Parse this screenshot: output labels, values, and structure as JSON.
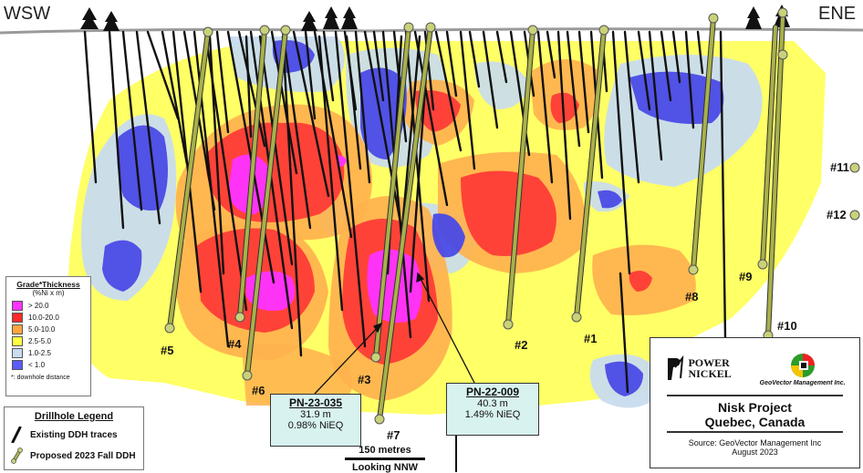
{
  "directions": {
    "left": "WSW",
    "right": "ENE"
  },
  "legend": {
    "title": "Grade*Thickness",
    "subtitle": "(%Ni x m)",
    "items": [
      {
        "label": "> 20.0",
        "color": "#ff33ff"
      },
      {
        "label": "10.0-20.0",
        "color": "#ff2a2a"
      },
      {
        "label": "5.0-10.0",
        "color": "#ffa640"
      },
      {
        "label": "2.5-5.0",
        "color": "#ffff44"
      },
      {
        "label": "1.0-2.5",
        "color": "#c8dcee"
      },
      {
        "label": "< 1.0",
        "color": "#5b5bff"
      }
    ],
    "note": "*: downhole distance"
  },
  "drillhole_legend": {
    "title": "Drillhole  Legend",
    "existing": "Existing DDH traces",
    "proposed": "Proposed 2023 Fall DDH"
  },
  "holes": [
    "#1",
    "#2",
    "#3",
    "#5",
    "#4",
    "#6",
    "#7",
    "#8",
    "#9",
    "#10",
    "#11",
    "#12"
  ],
  "callouts": [
    {
      "id": "PN-23-035",
      "length": "31.9 m",
      "grade": "0.98% NiEQ"
    },
    {
      "id": "PN-22-009",
      "length": "40.3 m",
      "grade": "1.49% NiEQ"
    }
  ],
  "scale": {
    "label": "150 metres",
    "view": "Looking NNW"
  },
  "info": {
    "company1": "POWER\nNICKEL",
    "company2": "GeoVector Management Inc.",
    "project": "Nisk Project",
    "location": "Quebec, Canada",
    "source": "Source: GeoVector Management Inc",
    "date": "August 2023"
  },
  "colors": {
    "proposed": "#a8b14a",
    "existing": "#111111",
    "ground": "#aaaaaa"
  }
}
